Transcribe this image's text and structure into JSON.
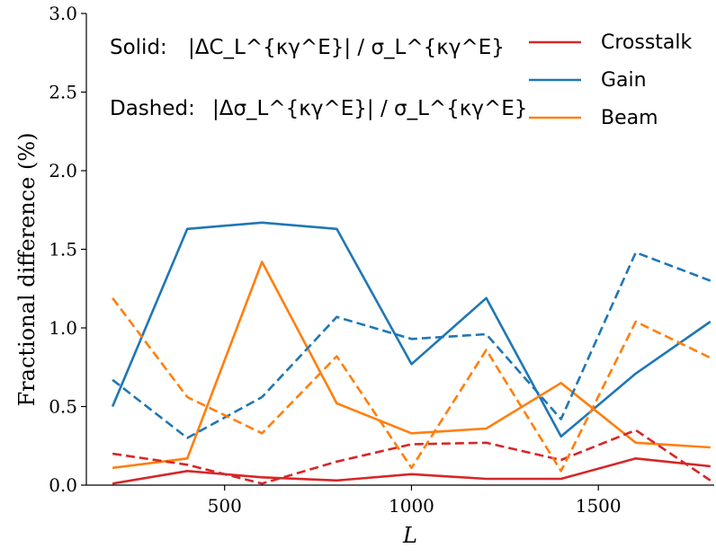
{
  "chart_data": {
    "type": "line",
    "xlabel": "L",
    "ylabel": "Fractional difference (%)",
    "xlim": [
      130,
      1810
    ],
    "ylim": [
      0,
      3.0
    ],
    "xticks": [
      500,
      1000,
      1500
    ],
    "yticks": [
      0.0,
      0.5,
      1.0,
      1.5,
      2.0,
      2.5,
      3.0
    ],
    "xtick_labels": [
      "500",
      "1000",
      "1500"
    ],
    "ytick_labels": [
      "0.0",
      "0.5",
      "1.0",
      "1.5",
      "2.0",
      "2.5",
      "3.0"
    ],
    "grid": false,
    "legend_position": "top-right",
    "annotations": [
      {
        "prefix": "Solid:",
        "formula": "|ΔC_L^{κγ^E}| / σ_L^{κγ^E}"
      },
      {
        "prefix": "Dashed:",
        "formula": "|Δσ_L^{κγ^E}| / σ_L^{κγ^E}"
      }
    ],
    "x": [
      200,
      400,
      600,
      800,
      1000,
      1200,
      1400,
      1600,
      1800
    ],
    "series": [
      {
        "name": "Crosstalk",
        "color": "#d62728",
        "style": "solid",
        "values": [
          0.01,
          0.09,
          0.05,
          0.03,
          0.07,
          0.04,
          0.04,
          0.17,
          0.12
        ]
      },
      {
        "name": "Gain",
        "color": "#1f77b4",
        "style": "solid",
        "values": [
          0.5,
          1.63,
          1.67,
          1.63,
          0.77,
          1.19,
          0.31,
          0.71,
          1.04
        ]
      },
      {
        "name": "Beam",
        "color": "#ff7f0e",
        "style": "solid",
        "values": [
          0.11,
          0.17,
          1.42,
          0.52,
          0.33,
          0.36,
          0.65,
          0.27,
          0.24
        ]
      },
      {
        "name": "Crosstalk",
        "color": "#d62728",
        "style": "dashed",
        "values": [
          0.2,
          0.13,
          0.01,
          0.15,
          0.26,
          0.27,
          0.16,
          0.35,
          0.03
        ]
      },
      {
        "name": "Gain",
        "color": "#1f77b4",
        "style": "dashed",
        "values": [
          0.67,
          0.3,
          0.56,
          1.07,
          0.93,
          0.96,
          0.42,
          1.48,
          1.3
        ]
      },
      {
        "name": "Beam",
        "color": "#ff7f0e",
        "style": "dashed",
        "values": [
          1.19,
          0.56,
          0.33,
          0.82,
          0.11,
          0.86,
          0.09,
          1.04,
          0.81
        ]
      }
    ],
    "legend": [
      {
        "label": "Crosstalk",
        "color": "#d62728"
      },
      {
        "label": "Gain",
        "color": "#1f77b4"
      },
      {
        "label": "Beam",
        "color": "#ff7f0e"
      }
    ]
  }
}
